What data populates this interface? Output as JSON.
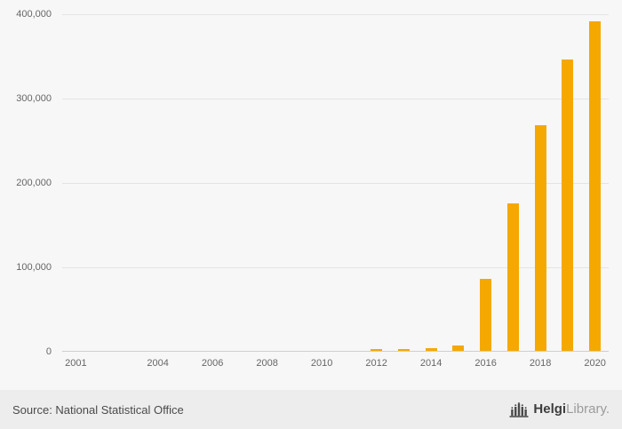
{
  "chart_data": {
    "type": "bar",
    "title": "",
    "xlabel": "",
    "ylabel": "",
    "categories": [
      2001,
      2002,
      2003,
      2004,
      2005,
      2006,
      2007,
      2008,
      2009,
      2010,
      2011,
      2012,
      2013,
      2014,
      2015,
      2016,
      2017,
      2018,
      2019,
      2020
    ],
    "values": [
      0,
      0,
      0,
      0,
      0,
      0,
      0,
      0,
      0,
      0,
      0,
      2000,
      2000,
      3500,
      6500,
      85000,
      175000,
      267000,
      345000,
      390000
    ],
    "xticks": [
      2001,
      2004,
      2006,
      2008,
      2010,
      2012,
      2014,
      2016,
      2018,
      2020
    ],
    "xtick_labels": [
      "2001",
      "2004",
      "2006",
      "2008",
      "2010",
      "2012",
      "2014",
      "2016",
      "2018",
      "2020"
    ],
    "yticks": [
      0,
      100000,
      200000,
      300000,
      400000
    ],
    "ytick_labels": [
      "0",
      "100,000",
      "200,000",
      "300,000",
      "400,000"
    ],
    "ylim": [
      0,
      400000
    ],
    "grid": true,
    "legend": false,
    "bar_color": "#F5A800"
  },
  "colors": {
    "background": "#f7f7f7",
    "footer_background": "#ededed",
    "gridline": "#e4e4e4",
    "axis_line": "#cfcfcf",
    "axis_text": "#666666",
    "source_text": "#4a4a4a",
    "brand_dark": "#3d3d3d",
    "brand_light": "#9b9b9b"
  },
  "footer": {
    "source": "Source: National Statistical Office",
    "brand": {
      "bold": "Helgi",
      "light": "Library."
    }
  }
}
